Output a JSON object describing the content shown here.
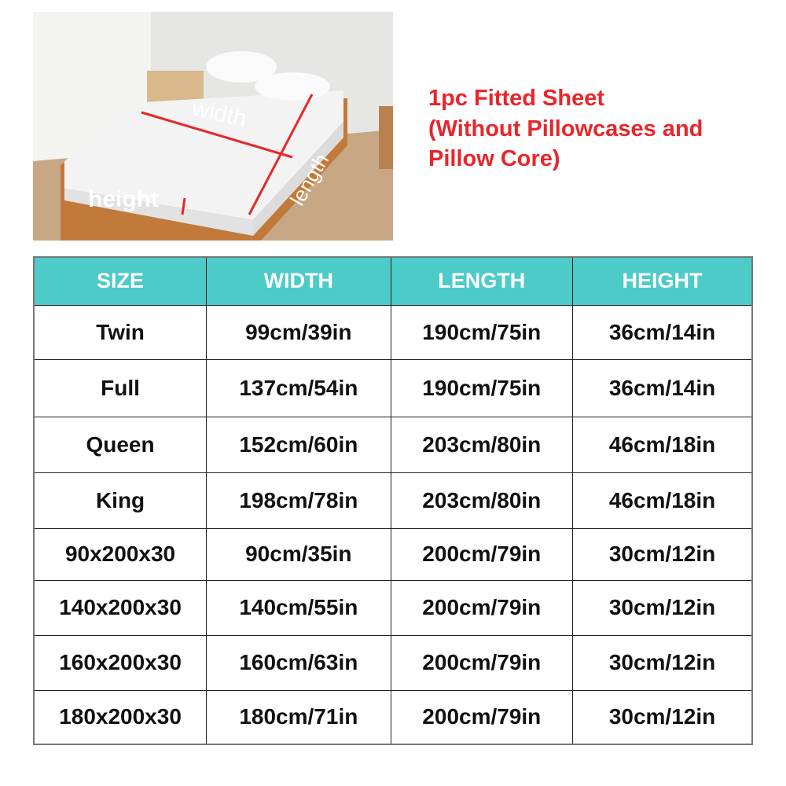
{
  "photo": {
    "labels": {
      "width": "width",
      "length": "length",
      "height": "height"
    },
    "arrow_color": "#e8262a"
  },
  "title": {
    "lines": [
      "1pc Fitted Sheet",
      "(Without Pillowcases and",
      "Pillow Core)"
    ],
    "color": "#e8262a"
  },
  "table": {
    "header_color": "#4ccbc9",
    "headers": [
      "SIZE",
      "WIDTH",
      "LENGTH",
      "HEIGHT"
    ],
    "rows": [
      [
        "Twin",
        "99cm/39in",
        "190cm/75in",
        "36cm/14in"
      ],
      [
        "Full",
        "137cm/54in",
        "190cm/75in",
        "36cm/14in"
      ],
      [
        "Queen",
        "152cm/60in",
        "203cm/80in",
        "46cm/18in"
      ],
      [
        "King",
        "198cm/78in",
        "203cm/80in",
        "46cm/18in"
      ],
      [
        "90x200x30",
        "90cm/35in",
        "200cm/79in",
        "30cm/12in"
      ],
      [
        "140x200x30",
        "140cm/55in",
        "200cm/79in",
        "30cm/12in"
      ],
      [
        "160x200x30",
        "160cm/63in",
        "200cm/79in",
        "30cm/12in"
      ],
      [
        "180x200x30",
        "180cm/71in",
        "200cm/79in",
        "30cm/12in"
      ]
    ]
  }
}
